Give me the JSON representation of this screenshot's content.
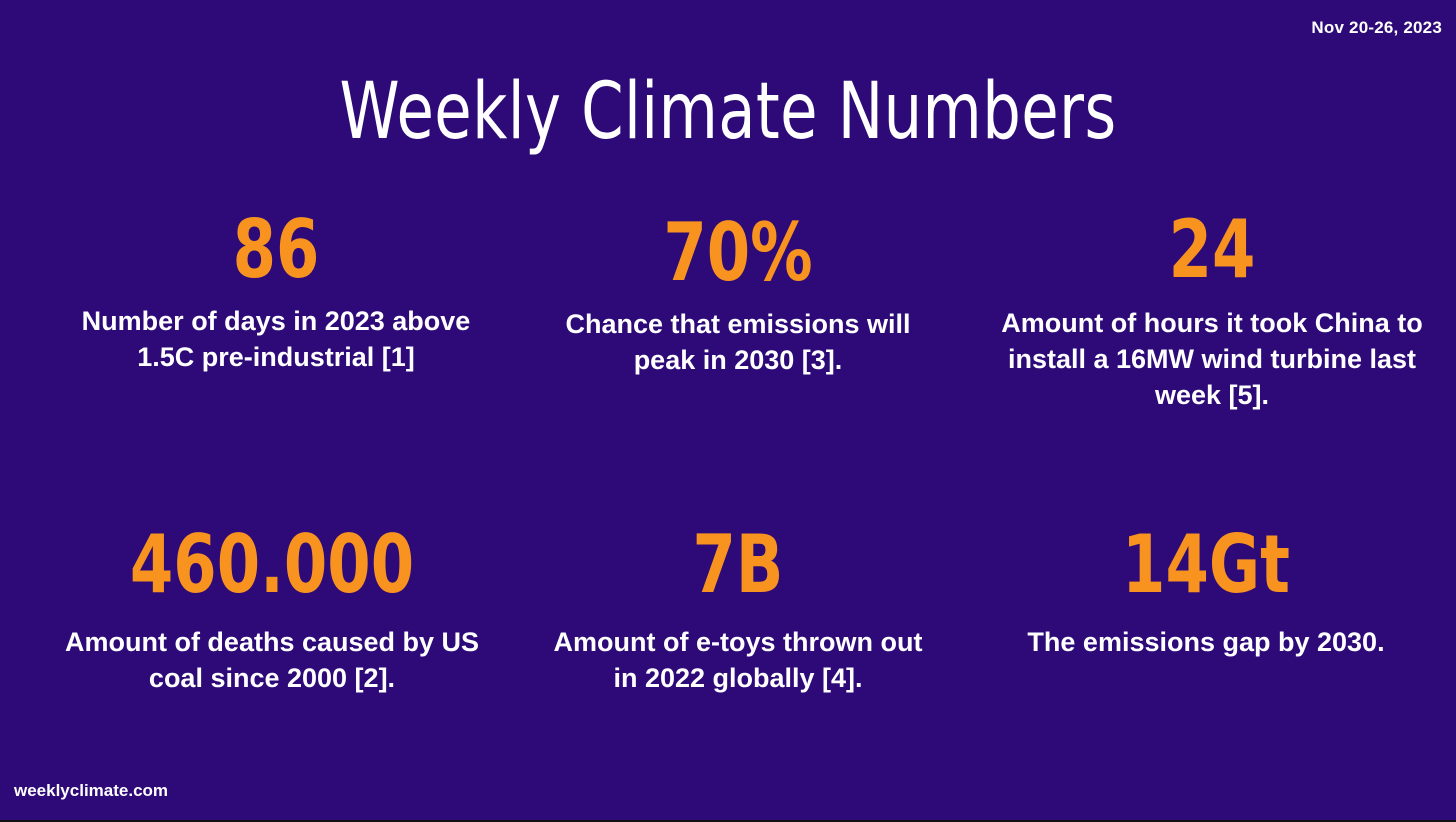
{
  "header": {
    "date": "Nov 20-26, 2023",
    "title": "Weekly Climate Numbers"
  },
  "stats": [
    {
      "value": "86",
      "description": "Number of days in 2023 above 1.5C pre-industrial [1]"
    },
    {
      "value": "70%",
      "description": "Chance that emissions will peak in 2030 [3]."
    },
    {
      "value": "24",
      "description": "Amount of hours it took China to install a 16MW wind turbine last week [5]."
    },
    {
      "value": "460.000",
      "description": "Amount of deaths caused by US coal since 2000 [2]."
    },
    {
      "value": "7B",
      "description": "Amount of e-toys thrown out in 2022 globally [4]."
    },
    {
      "value": "14Gt",
      "description": "The emissions gap by 2030."
    }
  ],
  "footer": {
    "site": "weeklyclimate.com"
  },
  "colors": {
    "background": "#2d0a78",
    "accent": "#f7931e",
    "text": "#ffffff"
  }
}
